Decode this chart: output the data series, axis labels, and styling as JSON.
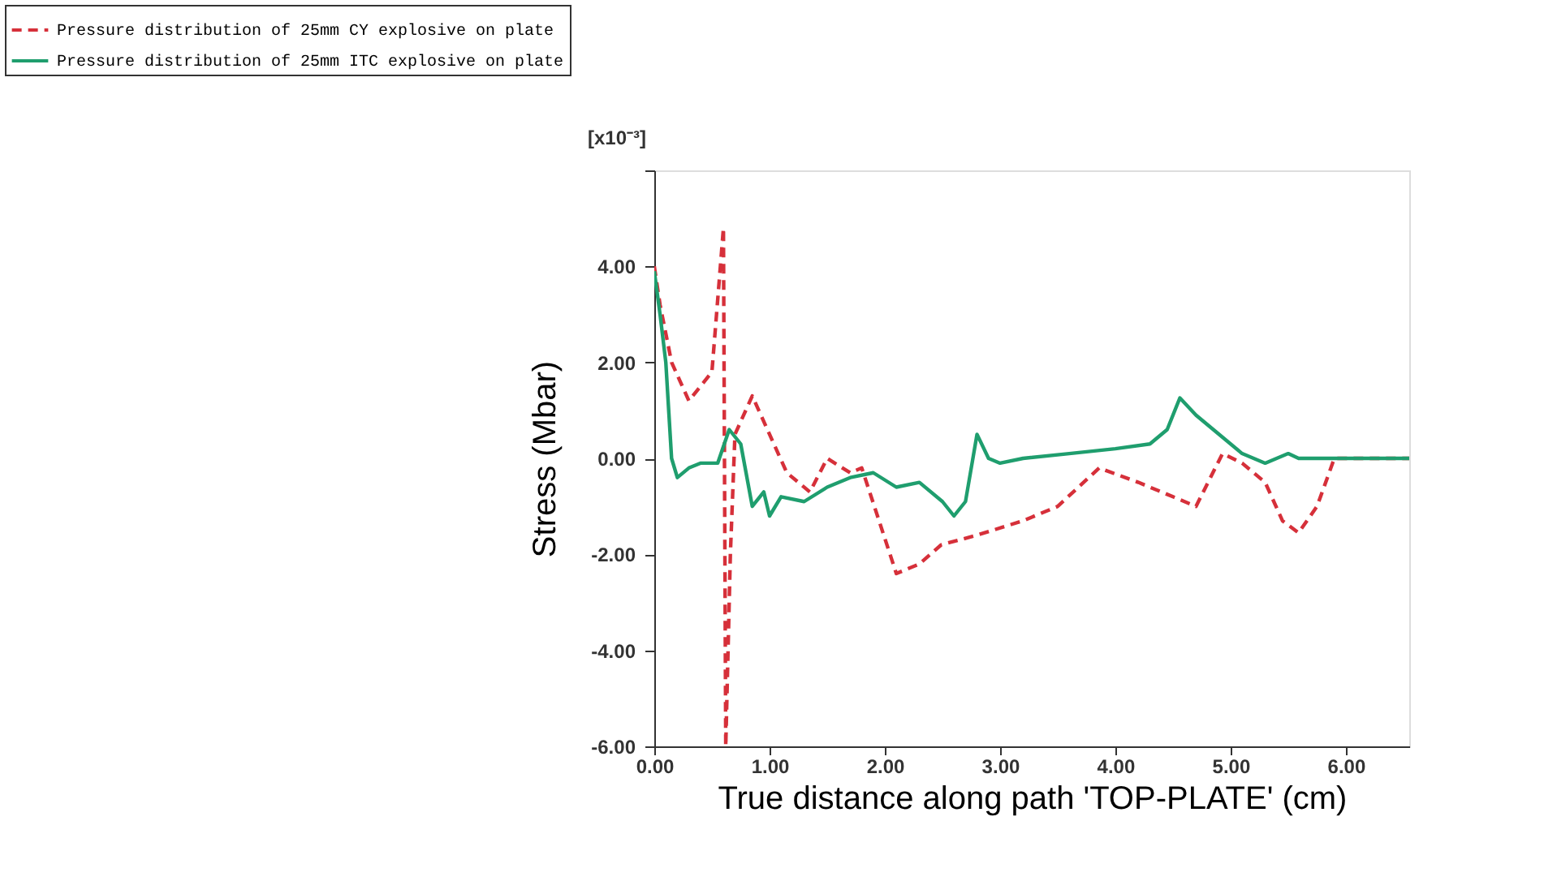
{
  "chart_data": {
    "type": "line",
    "xlabel": "True distance along path 'TOP-PLATE' (cm)",
    "ylabel": "Stress  (Mbar)",
    "annotations": [
      "[x10⁻³]"
    ],
    "xlim": [
      0,
      6.55
    ],
    "ylim": [
      -6,
      6
    ],
    "xticks": [
      {
        "value": 0,
        "label": "0.00"
      },
      {
        "value": 1,
        "label": "1.00"
      },
      {
        "value": 2,
        "label": "2.00"
      },
      {
        "value": 3,
        "label": "3.00"
      },
      {
        "value": 4,
        "label": "4.00"
      },
      {
        "value": 5,
        "label": "5.00"
      },
      {
        "value": 6,
        "label": "6.00"
      }
    ],
    "yticks": [
      {
        "value": -6,
        "label": "-6.00"
      },
      {
        "value": -4,
        "label": "-4.00"
      },
      {
        "value": -2,
        "label": "-2.00"
      },
      {
        "value": 0,
        "label": "0.00"
      },
      {
        "value": 2,
        "label": "2.00"
      },
      {
        "value": 4,
        "label": "4.00"
      },
      {
        "value": 6,
        "label": null
      }
    ],
    "grid": false,
    "legend": "top left",
    "series": [
      {
        "name": "Pressure distribution of 25mm CY explosive on plate",
        "color": "#d6303a",
        "line_style": "dashed",
        "x": [
          0,
          0.05,
          0.15,
          0.3,
          0.5,
          0.6,
          0.62,
          0.66,
          0.7,
          0.85,
          1.0,
          1.15,
          1.35,
          1.5,
          1.7,
          1.8,
          1.95,
          2.1,
          2.3,
          2.49,
          2.8,
          3.2,
          3.5,
          3.86,
          4.2,
          4.5,
          4.7,
          4.93,
          5.1,
          5.3,
          5.45,
          5.59,
          5.75,
          5.9,
          6.2,
          6.55
        ],
        "values": [
          4.0,
          3.2,
          2.0,
          1.2,
          1.8,
          4.8,
          -6.0,
          -2.0,
          0.5,
          1.3,
          0.5,
          -0.3,
          -0.7,
          0.0,
          -0.3,
          -0.2,
          -1.3,
          -2.4,
          -2.2,
          -1.8,
          -1.6,
          -1.3,
          -1.0,
          -0.2,
          -0.5,
          -0.8,
          -1.0,
          0.1,
          -0.1,
          -0.5,
          -1.3,
          -1.55,
          -1.0,
          0.0,
          0.0,
          0.0
        ]
      },
      {
        "name": "Pressure distribution of 25mm ITC explosive on plate",
        "color": "#1f9e6e",
        "line_style": "solid",
        "x": [
          0,
          0.05,
          0.1,
          0.15,
          0.2,
          0.3,
          0.4,
          0.55,
          0.65,
          0.75,
          0.85,
          0.95,
          1.0,
          1.1,
          1.3,
          1.5,
          1.7,
          1.9,
          2.1,
          2.3,
          2.5,
          2.6,
          2.7,
          2.8,
          2.9,
          3.0,
          3.2,
          3.6,
          4.0,
          4.3,
          4.45,
          4.56,
          4.7,
          4.85,
          5.1,
          5.3,
          5.5,
          5.59,
          6.0,
          6.55
        ],
        "values": [
          3.9,
          3.0,
          2.0,
          0.0,
          -0.4,
          -0.2,
          -0.1,
          -0.1,
          0.6,
          0.3,
          -1.0,
          -0.7,
          -1.2,
          -0.8,
          -0.9,
          -0.6,
          -0.4,
          -0.3,
          -0.6,
          -0.5,
          -0.9,
          -1.2,
          -0.9,
          0.5,
          0.0,
          -0.1,
          0.0,
          0.1,
          0.2,
          0.3,
          0.6,
          1.26,
          0.9,
          0.6,
          0.1,
          -0.1,
          0.1,
          0.0,
          0.0,
          0.0
        ]
      }
    ]
  }
}
